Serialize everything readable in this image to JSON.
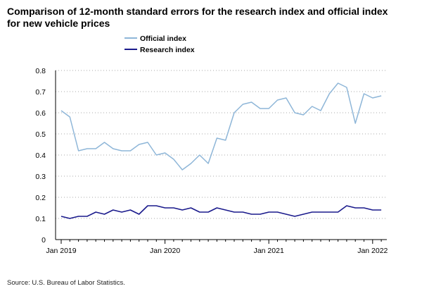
{
  "title": "Comparison of 12-month standard errors for the research index and official index for new vehicle prices",
  "source": "Source: U.S. Bureau of Labor Statistics.",
  "colors": {
    "official": "#8eb6d8",
    "research": "#1a1a8c",
    "grid": "#aaaaaa",
    "axis": "#000000"
  },
  "chart_data": {
    "type": "line",
    "x_start": "Jan 2019",
    "x_tick_labels": [
      "Jan 2019",
      "Jan 2020",
      "Jan 2021",
      "Jan 2022"
    ],
    "y_tick_labels": [
      "0",
      "0.1",
      "0.2",
      "0.3",
      "0.4",
      "0.5",
      "0.6",
      "0.7",
      "0.8"
    ],
    "ylim": [
      0,
      0.8
    ],
    "grid": true,
    "legend_position": "top",
    "series": [
      {
        "name": "Official index",
        "values": [
          0.61,
          0.58,
          0.42,
          0.43,
          0.43,
          0.46,
          0.43,
          0.42,
          0.42,
          0.45,
          0.46,
          0.4,
          0.41,
          0.38,
          0.33,
          0.36,
          0.4,
          0.36,
          0.48,
          0.47,
          0.6,
          0.64,
          0.65,
          0.62,
          0.62,
          0.66,
          0.67,
          0.6,
          0.59,
          0.63,
          0.61,
          0.69,
          0.74,
          0.72,
          0.55,
          0.69,
          0.67,
          0.68
        ]
      },
      {
        "name": "Research index",
        "values": [
          0.11,
          0.1,
          0.11,
          0.11,
          0.13,
          0.12,
          0.14,
          0.13,
          0.14,
          0.12,
          0.16,
          0.16,
          0.15,
          0.15,
          0.14,
          0.15,
          0.13,
          0.13,
          0.15,
          0.14,
          0.13,
          0.13,
          0.12,
          0.12,
          0.13,
          0.13,
          0.12,
          0.11,
          0.12,
          0.13,
          0.13,
          0.13,
          0.13,
          0.16,
          0.15,
          0.15,
          0.14,
          0.14
        ]
      }
    ]
  }
}
